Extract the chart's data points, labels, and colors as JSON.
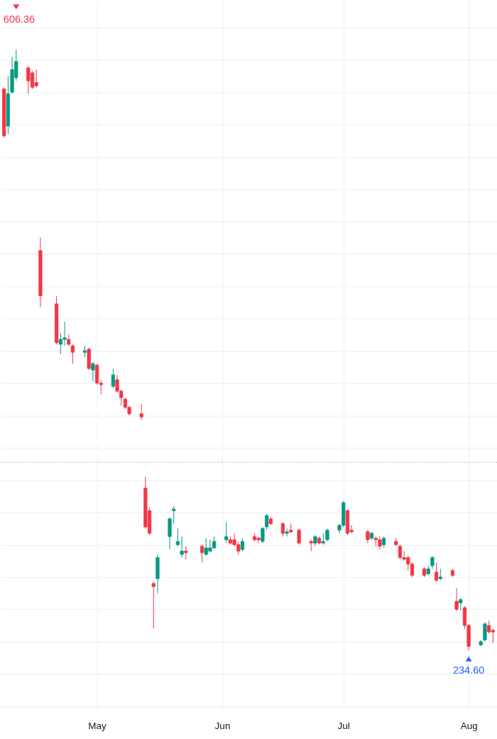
{
  "chart_data": {
    "type": "candlestick",
    "x": [
      "--04-08",
      "--04-09",
      "--04-10",
      "--04-11",
      "--04-14",
      "--04-15",
      "--04-16",
      "--04-17",
      "--04-21",
      "--04-22",
      "--04-23",
      "--04-24",
      "--04-25",
      "--04-28",
      "--04-29",
      "--04-30",
      "--05-01",
      "--05-02",
      "--05-05",
      "--05-06",
      "--05-07",
      "--05-08",
      "--05-09",
      "--05-12",
      "--05-13",
      "--05-14",
      "--05-15",
      "--05-16",
      "--05-19",
      "--05-20",
      "--05-21",
      "--05-22",
      "--05-23",
      "--05-27",
      "--05-28",
      "--05-29",
      "--05-30",
      "--06-02",
      "--06-03",
      "--06-04",
      "--06-05",
      "--06-06",
      "--06-09",
      "--06-10",
      "--06-11",
      "--06-12",
      "--06-13",
      "--06-16",
      "--06-17",
      "--06-18",
      "--06-20",
      "--06-23",
      "--06-24",
      "--06-25",
      "--06-26",
      "--06-27",
      "--06-30",
      "--07-01",
      "--07-02",
      "--07-03",
      "--07-07",
      "--07-08",
      "--07-09",
      "--07-10",
      "--07-11",
      "--07-14",
      "--07-15",
      "--07-16",
      "--07-17",
      "--07-18",
      "--07-21",
      "--07-22",
      "--07-23",
      "--07-24",
      "--07-25",
      "--07-28",
      "--07-29",
      "--07-30",
      "--07-31",
      "--08-01",
      "--08-04",
      "--08-05",
      "--08-06",
      "--08-07"
    ],
    "ohlc": [
      [
        582,
        583,
        552,
        553
      ],
      [
        559,
        590,
        554,
        579
      ],
      [
        580,
        602,
        579,
        594
      ],
      [
        589,
        606.36,
        587,
        599
      ],
      [
        595,
        596,
        579,
        587
      ],
      [
        592,
        593,
        582,
        583
      ],
      [
        586,
        594,
        583,
        584
      ],
      [
        482,
        490,
        447,
        454
      ],
      [
        449,
        454,
        424,
        425
      ],
      [
        424,
        431,
        418,
        427
      ],
      [
        427,
        438,
        423,
        428
      ],
      [
        427,
        430,
        423,
        424
      ],
      [
        423,
        424,
        412,
        419
      ],
      [
        419,
        423,
        416,
        420
      ],
      [
        421,
        422,
        408,
        409
      ],
      [
        408,
        413,
        401,
        412
      ],
      [
        411,
        412,
        399,
        400
      ],
      [
        400,
        402,
        393,
        399
      ],
      [
        398,
        409,
        397,
        405
      ],
      [
        402,
        405,
        394,
        395
      ],
      [
        395,
        396,
        386,
        391
      ],
      [
        390,
        391,
        384,
        385
      ],
      [
        385,
        386,
        380,
        381
      ],
      [
        381,
        387,
        377,
        379
      ],
      [
        335,
        342,
        310,
        311
      ],
      [
        321,
        323,
        306,
        307
      ],
      [
        276,
        277,
        248,
        274
      ],
      [
        279,
        294,
        270,
        292
      ],
      [
        305,
        317,
        297,
        316
      ],
      [
        321,
        324,
        313,
        322
      ],
      [
        300,
        310,
        299,
        302
      ],
      [
        294,
        305,
        292,
        296
      ],
      [
        296,
        299,
        291,
        295
      ],
      [
        299,
        300,
        289,
        295
      ],
      [
        294,
        304,
        293,
        298
      ],
      [
        296,
        303,
        295,
        298
      ],
      [
        298,
        305,
        297,
        302
      ],
      [
        303,
        314,
        301,
        305
      ],
      [
        303,
        305,
        300,
        301
      ],
      [
        303,
        307,
        299,
        300
      ],
      [
        300,
        302,
        294,
        296
      ],
      [
        297,
        304,
        296,
        302
      ],
      [
        305,
        307,
        302,
        303
      ],
      [
        304,
        305,
        301,
        303
      ],
      [
        302,
        311,
        301,
        310
      ],
      [
        311,
        319,
        309,
        318
      ],
      [
        316,
        317,
        312,
        313
      ],
      [
        313,
        314,
        305,
        307
      ],
      [
        307,
        310,
        305,
        308
      ],
      [
        309,
        313,
        307,
        308
      ],
      [
        309,
        310,
        300,
        301
      ],
      [
        302,
        303,
        296,
        301
      ],
      [
        301,
        306,
        299,
        305
      ],
      [
        304,
        305,
        300,
        301
      ],
      [
        301,
        307,
        300,
        302
      ],
      [
        303,
        310,
        302,
        309
      ],
      [
        309,
        313,
        307,
        312
      ],
      [
        312,
        327,
        311,
        326
      ],
      [
        321,
        322,
        306,
        307
      ],
      [
        309,
        312,
        307,
        308
      ],
      [
        308,
        309,
        301,
        303
      ],
      [
        304,
        308,
        303,
        307
      ],
      [
        304,
        305,
        299,
        303
      ],
      [
        303,
        305,
        297,
        299
      ],
      [
        300,
        305,
        298,
        304
      ],
      [
        302,
        304,
        299,
        300
      ],
      [
        299,
        300,
        291,
        292
      ],
      [
        292,
        296,
        290,
        291
      ],
      [
        292,
        293,
        284,
        288
      ],
      [
        288,
        289,
        280,
        281
      ],
      [
        285,
        286,
        280,
        281
      ],
      [
        282,
        287,
        281,
        285
      ],
      [
        287,
        293,
        285,
        292
      ],
      [
        283,
        289,
        277,
        278
      ],
      [
        279,
        285,
        278,
        280
      ],
      [
        284,
        285,
        280,
        281
      ],
      [
        265,
        273,
        259,
        260
      ],
      [
        264,
        267,
        259,
        266
      ],
      [
        261,
        262,
        248,
        250
      ],
      [
        250,
        251,
        234.6,
        237
      ],
      [
        238,
        241,
        237,
        240
      ],
      [
        241,
        252,
        240,
        251
      ],
      [
        250,
        253,
        245,
        246
      ],
      [
        247,
        248,
        239,
        246
      ]
    ],
    "colors": [
      "#f23645",
      "#089981",
      "#089981",
      "#089981",
      "#f23645",
      "#f23645",
      "#f23645",
      "#f23645",
      "#f23645",
      "#089981",
      "#089981",
      "#f23645",
      "#f23645",
      "#089981",
      "#f23645",
      "#089981",
      "#f23645",
      "#f23645",
      "#089981",
      "#f23645",
      "#f23645",
      "#f23645",
      "#f23645",
      "#f23645",
      "#f23645",
      "#f23645",
      "#f23645",
      "#089981",
      "#089981",
      "#089981",
      "#089981",
      "#089981",
      "#f23645",
      "#f23645",
      "#089981",
      "#089981",
      "#089981",
      "#089981",
      "#f23645",
      "#f23645",
      "#f23645",
      "#089981",
      "#f23645",
      "#f23645",
      "#089981",
      "#089981",
      "#f23645",
      "#f23645",
      "#089981",
      "#f23645",
      "#f23645",
      "#f23645",
      "#089981",
      "#f23645",
      "#089981",
      "#089981",
      "#089981",
      "#089981",
      "#f23645",
      "#f23645",
      "#f23645",
      "#089981",
      "#f23645",
      "#f23645",
      "#089981",
      "#f23645",
      "#f23645",
      "#f23645",
      "#f23645",
      "#f23645",
      "#f23645",
      "#089981",
      "#089981",
      "#f23645",
      "#089981",
      "#f23645",
      "#f23645",
      "#089981",
      "#f23645",
      "#f23645",
      "#089981",
      "#089981",
      "#f23645",
      "#f23645"
    ],
    "xlim": [
      "--04-07",
      "--08-08"
    ],
    "xticks": [
      {
        "value": "--05-01",
        "label": "May"
      },
      {
        "value": "--06-01",
        "label": "Jun"
      },
      {
        "value": "--07-01",
        "label": "Jul"
      },
      {
        "value": "--08-01",
        "label": "Aug"
      }
    ],
    "yticks": [
      {
        "value": 200,
        "label": null
      },
      {
        "value": 220,
        "label": null
      },
      {
        "value": 240,
        "label": null
      },
      {
        "value": 260,
        "label": null
      },
      {
        "value": 280,
        "label": null
      },
      {
        "value": 300,
        "label": null
      },
      {
        "value": 320,
        "label": null
      },
      {
        "value": 340,
        "label": null
      },
      {
        "value": 360,
        "label": null
      },
      {
        "value": 380,
        "label": null
      },
      {
        "value": 400,
        "label": null
      },
      {
        "value": 420,
        "label": null
      },
      {
        "value": 440,
        "label": null
      },
      {
        "value": 460,
        "label": null
      },
      {
        "value": 480,
        "label": null
      },
      {
        "value": 500,
        "label": null
      },
      {
        "value": 520,
        "label": null
      },
      {
        "value": 540,
        "label": null
      },
      {
        "value": 560,
        "label": null
      },
      {
        "value": 580,
        "label": null
      },
      {
        "value": 600,
        "label": null
      },
      {
        "value": 620,
        "label": null
      }
    ],
    "grid": true,
    "tick_labels": "x",
    "annotations": [
      {
        "text": "606.36",
        "x": "--04-11",
        "y": 606.36
      },
      {
        "text": "234.60",
        "x": "--08-01",
        "y": 234.6
      }
    ],
    "ref_lines": [
      {
        "axis": "y",
        "value": 351,
        "line_style": "dotted",
        "color": "#9598a1"
      }
    ]
  }
}
